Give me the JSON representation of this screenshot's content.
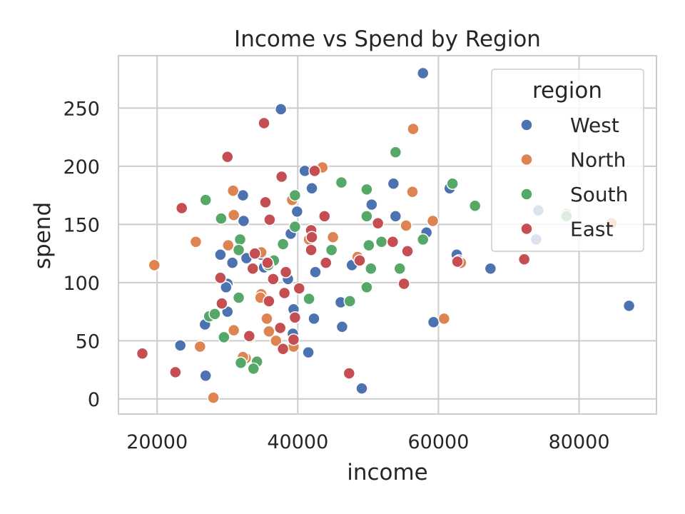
{
  "chart_data": {
    "type": "scatter",
    "title": "Income vs Spend by Region",
    "xlabel": "income",
    "ylabel": "spend",
    "xlim": [
      14500,
      91000
    ],
    "ylim": [
      -13,
      295
    ],
    "xticks": [
      20000,
      40000,
      60000,
      80000
    ],
    "yticks": [
      0,
      50,
      100,
      150,
      200,
      250
    ],
    "grid": true,
    "legend": {
      "title": "region",
      "placement": "top-right"
    },
    "series": [
      {
        "name": "West",
        "color": "#4c72b0",
        "points": [
          [
            57800,
            280
          ],
          [
            37600,
            249
          ],
          [
            41000,
            196
          ],
          [
            42000,
            181
          ],
          [
            32200,
            175
          ],
          [
            53600,
            185
          ],
          [
            61600,
            181
          ],
          [
            39900,
            161
          ],
          [
            32300,
            153
          ],
          [
            53900,
            157
          ],
          [
            74200,
            162
          ],
          [
            39000,
            142
          ],
          [
            58300,
            143
          ],
          [
            50500,
            167
          ],
          [
            73900,
            137
          ],
          [
            29000,
            124
          ],
          [
            34800,
            124
          ],
          [
            32700,
            121
          ],
          [
            30700,
            117
          ],
          [
            35200,
            113
          ],
          [
            62600,
            124
          ],
          [
            62900,
            119
          ],
          [
            42500,
            109
          ],
          [
            47700,
            115
          ],
          [
            67400,
            112
          ],
          [
            38600,
            103
          ],
          [
            30000,
            99
          ],
          [
            29800,
            96
          ],
          [
            39400,
            77
          ],
          [
            30000,
            75
          ],
          [
            42300,
            69
          ],
          [
            59300,
            66
          ],
          [
            46100,
            83
          ],
          [
            26800,
            64
          ],
          [
            46300,
            62
          ],
          [
            39300,
            56
          ],
          [
            23300,
            46
          ],
          [
            41500,
            40
          ],
          [
            49100,
            9
          ],
          [
            26900,
            20
          ],
          [
            87100,
            80
          ]
        ]
      },
      {
        "name": "North",
        "color": "#dd8452",
        "points": [
          [
            56400,
            232
          ],
          [
            43500,
            199
          ],
          [
            30800,
            179
          ],
          [
            56300,
            178
          ],
          [
            39200,
            171
          ],
          [
            30900,
            158
          ],
          [
            59200,
            153
          ],
          [
            84600,
            151
          ],
          [
            78200,
            159
          ],
          [
            55400,
            149
          ],
          [
            25500,
            135
          ],
          [
            30100,
            132
          ],
          [
            45000,
            139
          ],
          [
            41600,
            137
          ],
          [
            34800,
            126
          ],
          [
            48500,
            122
          ],
          [
            63200,
            117
          ],
          [
            19600,
            115
          ],
          [
            34800,
            90
          ],
          [
            34700,
            87
          ],
          [
            35600,
            69
          ],
          [
            60800,
            69
          ],
          [
            30900,
            59
          ],
          [
            35900,
            58
          ],
          [
            26100,
            45
          ],
          [
            36900,
            50
          ],
          [
            33200,
            53
          ],
          [
            32600,
            35
          ],
          [
            39400,
            45
          ],
          [
            28000,
            1
          ],
          [
            32200,
            36
          ]
        ]
      },
      {
        "name": "South",
        "color": "#55a868",
        "points": [
          [
            53900,
            212
          ],
          [
            46200,
            186
          ],
          [
            62000,
            185
          ],
          [
            49800,
            180
          ],
          [
            39600,
            175
          ],
          [
            26900,
            171
          ],
          [
            65200,
            166
          ],
          [
            29100,
            155
          ],
          [
            49800,
            157
          ],
          [
            39600,
            148
          ],
          [
            78200,
            157
          ],
          [
            51900,
            135
          ],
          [
            57800,
            137
          ],
          [
            31800,
            137
          ],
          [
            37900,
            133
          ],
          [
            50100,
            132
          ],
          [
            31600,
            128
          ],
          [
            44800,
            128
          ],
          [
            36600,
            119
          ],
          [
            35800,
            115
          ],
          [
            50400,
            112
          ],
          [
            54500,
            112
          ],
          [
            49800,
            96
          ],
          [
            31600,
            87
          ],
          [
            41600,
            86
          ],
          [
            47400,
            84
          ],
          [
            27400,
            71
          ],
          [
            28200,
            73
          ],
          [
            29500,
            53
          ],
          [
            31900,
            31
          ],
          [
            34200,
            32
          ],
          [
            33700,
            26
          ]
        ]
      },
      {
        "name": "East",
        "color": "#c44e52",
        "points": [
          [
            35200,
            237
          ],
          [
            30000,
            208
          ],
          [
            42400,
            196
          ],
          [
            37700,
            191
          ],
          [
            23500,
            164
          ],
          [
            35400,
            169
          ],
          [
            43800,
            157
          ],
          [
            36000,
            154
          ],
          [
            51400,
            151
          ],
          [
            41900,
            145
          ],
          [
            42000,
            139
          ],
          [
            53500,
            135
          ],
          [
            41900,
            128
          ],
          [
            55600,
            127
          ],
          [
            33900,
            125
          ],
          [
            44000,
            117
          ],
          [
            48800,
            119
          ],
          [
            35700,
            117
          ],
          [
            62700,
            118
          ],
          [
            72200,
            120
          ],
          [
            33600,
            112
          ],
          [
            29000,
            104
          ],
          [
            36500,
            103
          ],
          [
            38300,
            109
          ],
          [
            55100,
            99
          ],
          [
            38100,
            91
          ],
          [
            40200,
            95
          ],
          [
            29200,
            82
          ],
          [
            35900,
            84
          ],
          [
            39600,
            70
          ],
          [
            37500,
            61
          ],
          [
            33100,
            54
          ],
          [
            39400,
            51
          ],
          [
            37900,
            43
          ],
          [
            17900,
            39
          ],
          [
            22600,
            23
          ],
          [
            47300,
            22
          ]
        ]
      }
    ]
  }
}
